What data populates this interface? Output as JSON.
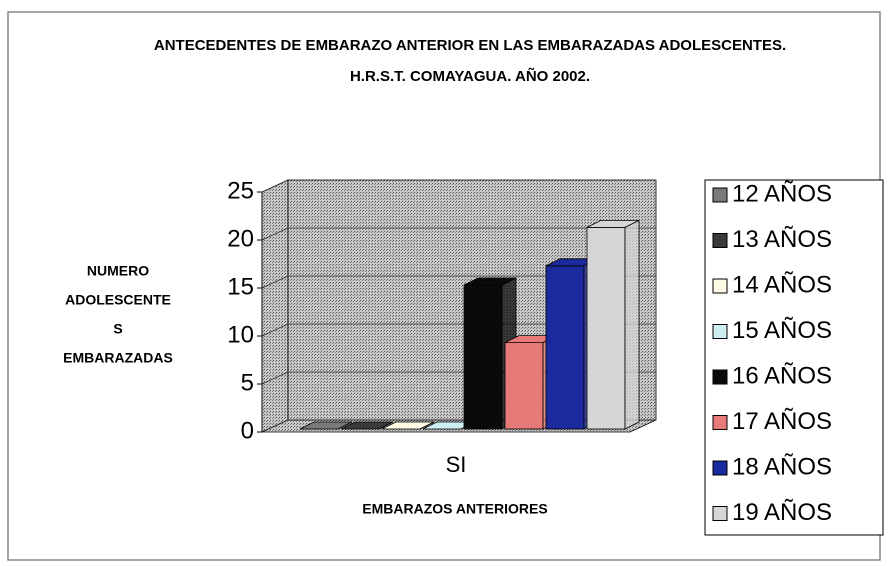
{
  "chart_data": {
    "type": "bar3d",
    "title": "ANTECEDENTES DE EMBARAZO ANTERIOR EN LAS EMBARAZADAS ADOLESCENTES.  H.R.S.T.  COMAYAGUA.  AÑO 2002.",
    "y_label": [
      "NUMERO",
      "ADOLESCENTE",
      "S",
      "EMBARAZADAS"
    ],
    "x_label": "EMBARAZOS ANTERIORES",
    "categories": [
      "SI"
    ],
    "series": [
      {
        "name": "12 AÑOS",
        "color": "#7a7a7a",
        "values": [
          0
        ]
      },
      {
        "name": "13 AÑOS",
        "color": "#3a3a3a",
        "values": [
          0
        ]
      },
      {
        "name": "14 AÑOS",
        "color": "#fffbe6",
        "values": [
          0
        ]
      },
      {
        "name": "15 AÑOS",
        "color": "#cfeef2",
        "values": [
          0
        ]
      },
      {
        "name": "16 AÑOS",
        "color": "#0a0a0a",
        "values": [
          15
        ]
      },
      {
        "name": "17 AÑOS",
        "color": "#e57a78",
        "values": [
          9
        ]
      },
      {
        "name": "18 AÑOS",
        "color": "#1b2a9c",
        "values": [
          17
        ]
      },
      {
        "name": "19 AÑOS",
        "color": "#d6d6d6",
        "values": [
          21
        ]
      }
    ],
    "ylim": [
      0,
      25
    ],
    "yticks": [
      0,
      5,
      10,
      15,
      20,
      25
    ],
    "grid": true,
    "legend": "right"
  }
}
